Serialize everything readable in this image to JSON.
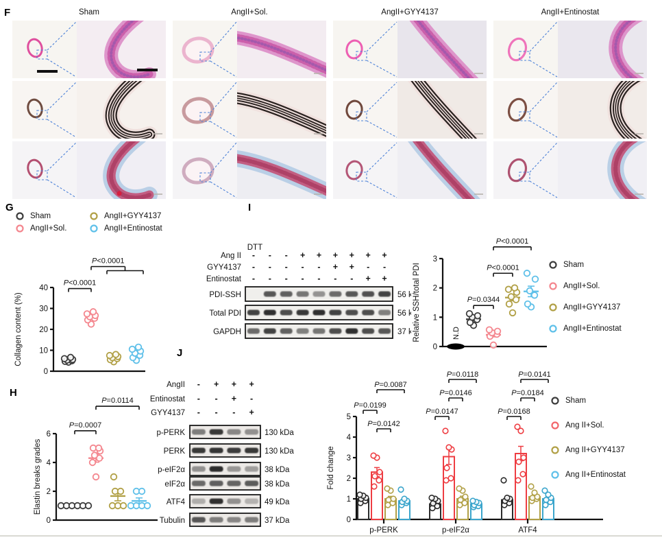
{
  "panel_f": {
    "label": "F",
    "columns": [
      "Sham",
      "AngII+Sol.",
      "AngII+GYY4137",
      "AngII+Entinostat"
    ]
  },
  "panel_g": {
    "label": "G",
    "legend": [
      {
        "name": "Sham",
        "color": "#3d3d3d"
      },
      {
        "name": "AngII+Sol.",
        "color": "#f4868e"
      },
      {
        "name": "AngII+GYY4137",
        "color": "#b1a046"
      },
      {
        "name": "AngII+Entinostat",
        "color": "#5fc0e9"
      }
    ]
  },
  "panel_h": {
    "label": "H"
  },
  "panel_i": {
    "label": "I",
    "blot": {
      "dtt_label": "DTT",
      "treatments": [
        {
          "name": "Ang II",
          "signs": [
            "-",
            "-",
            "-",
            "+",
            "+",
            "+",
            "+",
            "+",
            "+"
          ]
        },
        {
          "name": "GYY4137",
          "signs": [
            "-",
            "-",
            "-",
            "-",
            "-",
            "+",
            "+",
            "-",
            "-"
          ]
        },
        {
          "name": "Entinostat",
          "signs": [
            "-",
            "-",
            "-",
            "-",
            "-",
            "-",
            "-",
            "+",
            "+"
          ]
        }
      ],
      "bands": [
        {
          "name": "PDI-SSH",
          "kda": "56 kDa"
        },
        {
          "name": "Total PDI",
          "kda": "56 kDa"
        },
        {
          "name": "GAPDH",
          "kda": "37 kDa"
        }
      ]
    },
    "legend": [
      {
        "name": "Sham",
        "color": "#3d3d3d"
      },
      {
        "name": "AngII+Sol.",
        "color": "#f4868e"
      },
      {
        "name": "AngII+GYY4137",
        "color": "#b1a046"
      },
      {
        "name": "AngII+Entinostat",
        "color": "#5fc0e9"
      }
    ]
  },
  "panel_j": {
    "label": "J",
    "blot": {
      "treatments": [
        {
          "name": "AngII",
          "signs": [
            "-",
            "+",
            "+",
            "+"
          ]
        },
        {
          "name": "Entinostat",
          "signs": [
            "-",
            "-",
            "+",
            "-"
          ]
        },
        {
          "name": "GYY4137",
          "signs": [
            "-",
            "-",
            "-",
            "+"
          ]
        }
      ],
      "bands": [
        {
          "name": "p-PERK",
          "kda": "130 kDa"
        },
        {
          "name": "PERK",
          "kda": "130 kDa"
        },
        {
          "name": "p-eIF2α",
          "kda": "38 kDa"
        },
        {
          "name": "eIF2α",
          "kda": "38 kDa"
        },
        {
          "name": "ATF4",
          "kda": "49 kDa"
        },
        {
          "name": "Tubulin",
          "kda": "37 kDa"
        }
      ]
    },
    "legend": [
      {
        "name": "Sham",
        "color": "#3d3d3d"
      },
      {
        "name": "Ang II+Sol.",
        "color": "#f2666b"
      },
      {
        "name": "Ang II+GYY4137",
        "color": "#b1a046"
      },
      {
        "name": "Ang II+Entinostat",
        "color": "#5fc0e9"
      }
    ]
  },
  "chart_data": [
    {
      "panel": "G",
      "type": "scatter",
      "title": "",
      "xlabel": "",
      "ylabel": "Collagen content (%)",
      "ylim": [
        0,
        40
      ],
      "yticks": [
        0,
        10,
        20,
        30,
        40
      ],
      "groups": [
        {
          "name": "Sham",
          "color": "#3d3d3d",
          "values": [
            4.3,
            4.7,
            5.0,
            5.3,
            5.6,
            6.0,
            6.6
          ]
        },
        {
          "name": "AngII+Sol.",
          "color": "#f4868e",
          "values": [
            22.5,
            24.5,
            25.3,
            26.0,
            26.6,
            27.4,
            28.4
          ]
        },
        {
          "name": "AngII+GYY4137",
          "color": "#b1a046",
          "values": [
            4.5,
            5.5,
            6.0,
            6.5,
            7.0,
            7.5,
            8.0
          ]
        },
        {
          "name": "AngII+Entinostat",
          "color": "#5fc0e9",
          "values": [
            5.2,
            6.5,
            7.6,
            8.6,
            9.6,
            10.5,
            11.5
          ]
        }
      ],
      "significance": [
        {
          "label": "P<0.0001",
          "a": 0,
          "b": 1,
          "y": 39.5
        },
        {
          "label": "P<0.0001",
          "a": 1,
          "b": [
            2,
            3
          ],
          "y": 50
        }
      ]
    },
    {
      "panel": "H",
      "type": "scatter",
      "title": "",
      "xlabel": "",
      "ylabel": "Elastin breaks grades",
      "ylim": [
        0,
        6
      ],
      "yticks": [
        0,
        2,
        4,
        6
      ],
      "groups": [
        {
          "name": "Sham",
          "color": "#3d3d3d",
          "values": [
            1,
            1,
            1,
            1,
            1,
            1
          ]
        },
        {
          "name": "AngII+Sol.",
          "color": "#f4868e",
          "mean": 4.3,
          "sem": 0.28,
          "values": [
            3,
            4,
            4.3,
            4.5,
            4.8,
            5,
            5
          ]
        },
        {
          "name": "AngII+GYY4137",
          "color": "#b1a046",
          "mean": 1.67,
          "sem": 0.33,
          "values": [
            1,
            1,
            1,
            2,
            2,
            3
          ]
        },
        {
          "name": "AngII+Entinostat",
          "color": "#5fc0e9",
          "mean": 1.33,
          "sem": 0.21,
          "values": [
            1,
            1,
            1,
            1,
            2,
            2
          ]
        }
      ],
      "significance": [
        {
          "label": "P=0.0007",
          "a": 0,
          "b": 1,
          "y": 6.2
        },
        {
          "label": "P=0.0114",
          "a": 1,
          "b": 3,
          "y": 7.9
        }
      ]
    },
    {
      "panel": "I",
      "type": "scatter",
      "title": "",
      "xlabel": "",
      "ylabel": "Relative SSH/total PDI",
      "ylim": [
        0,
        3
      ],
      "yticks": [
        0,
        1,
        2,
        3
      ],
      "groups": [
        {
          "name": "N.D",
          "color": "#000000",
          "nd": true,
          "values": [
            0
          ]
        },
        {
          "name": "Sham",
          "color": "#3d3d3d",
          "mean": 0.93,
          "sem": 0.06,
          "values": [
            0.72,
            0.82,
            0.92,
            1.0,
            1.05,
            1.12
          ]
        },
        {
          "name": "AngII+Sol.",
          "color": "#f4868e",
          "mean": 0.4,
          "sem": 0.07,
          "values": [
            0.05,
            0.35,
            0.42,
            0.47,
            0.52,
            0.57
          ]
        },
        {
          "name": "AngII+GYY4137",
          "color": "#b1a046",
          "mean": 1.67,
          "sem": 0.11,
          "values": [
            1.15,
            1.45,
            1.6,
            1.7,
            1.85,
            1.95,
            2.0
          ]
        },
        {
          "name": "AngII+Entinostat",
          "color": "#5fc0e9",
          "mean": 1.88,
          "sem": 0.18,
          "values": [
            1.35,
            1.45,
            1.75,
            1.9,
            2.3,
            2.5
          ]
        }
      ],
      "significance": [
        {
          "label": "P=0.0344",
          "a": 1,
          "b": 2,
          "y": 1.4
        },
        {
          "label": "P<0.0001",
          "a": 2,
          "b": 3,
          "y": 2.5
        },
        {
          "label": "P<0.0001",
          "a": 2,
          "b": 4,
          "y": 3.4
        }
      ]
    },
    {
      "panel": "J",
      "type": "bar",
      "title": "",
      "xlabel": "",
      "ylabel": "Fold change",
      "ylim": [
        0,
        5
      ],
      "yticks": [
        0,
        1,
        2,
        3,
        4,
        5
      ],
      "categories": [
        "p-PERK",
        "p-eIF2α",
        "ATF4"
      ],
      "series": [
        {
          "name": "Sham",
          "color": "#2b2b2b",
          "means": [
            1.0,
            0.75,
            0.95
          ],
          "sem": [
            0.07,
            0.08,
            0.1
          ],
          "points": [
            [
              0.8,
              0.9,
              1.0,
              1.05,
              1.15,
              1.2
            ],
            [
              0.55,
              0.65,
              0.78,
              0.9,
              1.0,
              1.05
            ],
            [
              0.7,
              0.8,
              0.9,
              1.0,
              1.05,
              1.9
            ]
          ]
        },
        {
          "name": "Ang II+Sol.",
          "color": "#ee3d42",
          "means": [
            2.3,
            3.05,
            3.2
          ],
          "sem": [
            0.22,
            0.38,
            0.35
          ],
          "points": [
            [
              1.6,
              1.9,
              2.1,
              2.3,
              3.0,
              3.1
            ],
            [
              1.9,
              2.0,
              2.5,
              3.4,
              3.5,
              4.3
            ],
            [
              1.9,
              2.2,
              2.8,
              3.0,
              4.3,
              4.5
            ]
          ]
        },
        {
          "name": "Ang II+GYY4137",
          "color": "#b1a046",
          "means": [
            1.0,
            1.0,
            1.1
          ],
          "sem": [
            0.12,
            0.13,
            0.1
          ],
          "points": [
            [
              0.7,
              0.8,
              0.95,
              1.0,
              1.4,
              1.5
            ],
            [
              0.7,
              0.8,
              0.95,
              1.1,
              1.4,
              1.5
            ],
            [
              0.9,
              1.0,
              1.05,
              1.1,
              1.3,
              1.6
            ]
          ]
        },
        {
          "name": "Ang II+Entinostat",
          "color": "#3aa5cc",
          "means": [
            0.9,
            0.75,
            1.0
          ],
          "sem": [
            0.08,
            0.06,
            0.1
          ],
          "points": [
            [
              0.7,
              0.8,
              0.85,
              0.9,
              1.0,
              1.45
            ],
            [
              0.6,
              0.65,
              0.7,
              0.8,
              0.85,
              0.9
            ],
            [
              0.7,
              0.85,
              0.95,
              1.05,
              1.2,
              1.4
            ]
          ]
        }
      ],
      "significance": [
        {
          "category": 0,
          "label": "P=0.0199",
          "a": 0,
          "b": 1,
          "y": 5.3
        },
        {
          "category": 0,
          "label": "P=0.0142",
          "a": 1,
          "b": 2,
          "y": 4.4
        },
        {
          "category": 0,
          "label": "P=0.0087",
          "a": 1,
          "b": 3,
          "y": 6.3
        },
        {
          "category": 1,
          "label": "P=0.0147",
          "a": 0,
          "b": 1,
          "y": 5.0
        },
        {
          "category": 1,
          "label": "P=0.0146",
          "a": 1,
          "b": 2,
          "y": 5.9
        },
        {
          "category": 1,
          "label": "P=0.0118",
          "a": 1,
          "b": 3,
          "y": 6.8
        },
        {
          "category": 2,
          "label": "P=0.0168",
          "a": 0,
          "b": 1,
          "y": 5.0
        },
        {
          "category": 2,
          "label": "P=0.0184",
          "a": 1,
          "b": 2,
          "y": 5.9
        },
        {
          "category": 2,
          "label": "P=0.0141",
          "a": 1,
          "b": 3,
          "y": 6.8
        }
      ]
    }
  ]
}
